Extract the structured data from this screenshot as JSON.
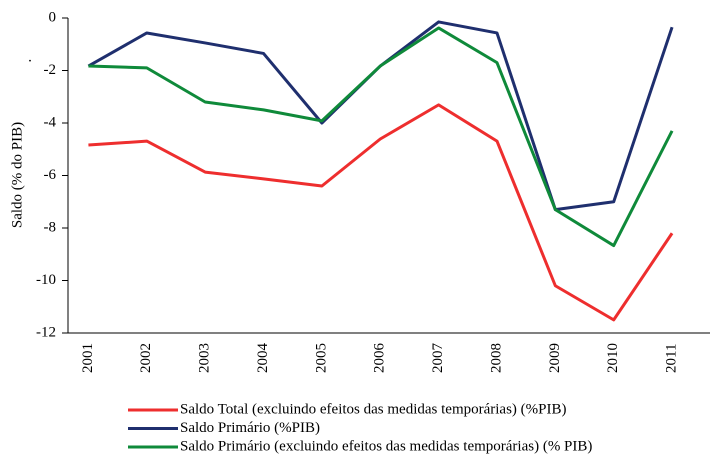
{
  "chart_data": {
    "type": "line",
    "y_label": "Saldo (% do PIB)",
    "annotation": ".",
    "categories": [
      "2001",
      "2002",
      "2003",
      "2004",
      "2005",
      "2006",
      "2007",
      "2008",
      "2009",
      "2010",
      "2011"
    ],
    "series": [
      {
        "name": "Saldo Total (excluindo efeitos das medidas temporárias) (%PIB)",
        "color": "#ee2e2e",
        "values": [
          -4.84,
          -4.69,
          -5.87,
          -6.13,
          -6.4,
          -4.61,
          -3.31,
          -4.69,
          -10.2,
          -11.5,
          -8.2
        ]
      },
      {
        "name": "Saldo Primário (%PIB)",
        "color": "#1f2f6e",
        "values": [
          -1.83,
          -0.57,
          -0.95,
          -1.35,
          -4.0,
          -1.83,
          -0.15,
          -0.57,
          -7.3,
          -7.0,
          -0.35
        ]
      },
      {
        "name": "Saldo Primário (excluindo efeitos das medidas temporárias) (% PIB)",
        "color": "#0f8a3a",
        "values": [
          -1.83,
          -1.9,
          -3.2,
          -3.5,
          -3.92,
          -1.83,
          -0.38,
          -1.7,
          -7.3,
          -8.67,
          -4.3
        ]
      }
    ],
    "ylim": [
      -12,
      0
    ],
    "yticks": [
      -12,
      -10,
      -8,
      -6,
      -4,
      -2,
      0
    ],
    "grid": false
  }
}
